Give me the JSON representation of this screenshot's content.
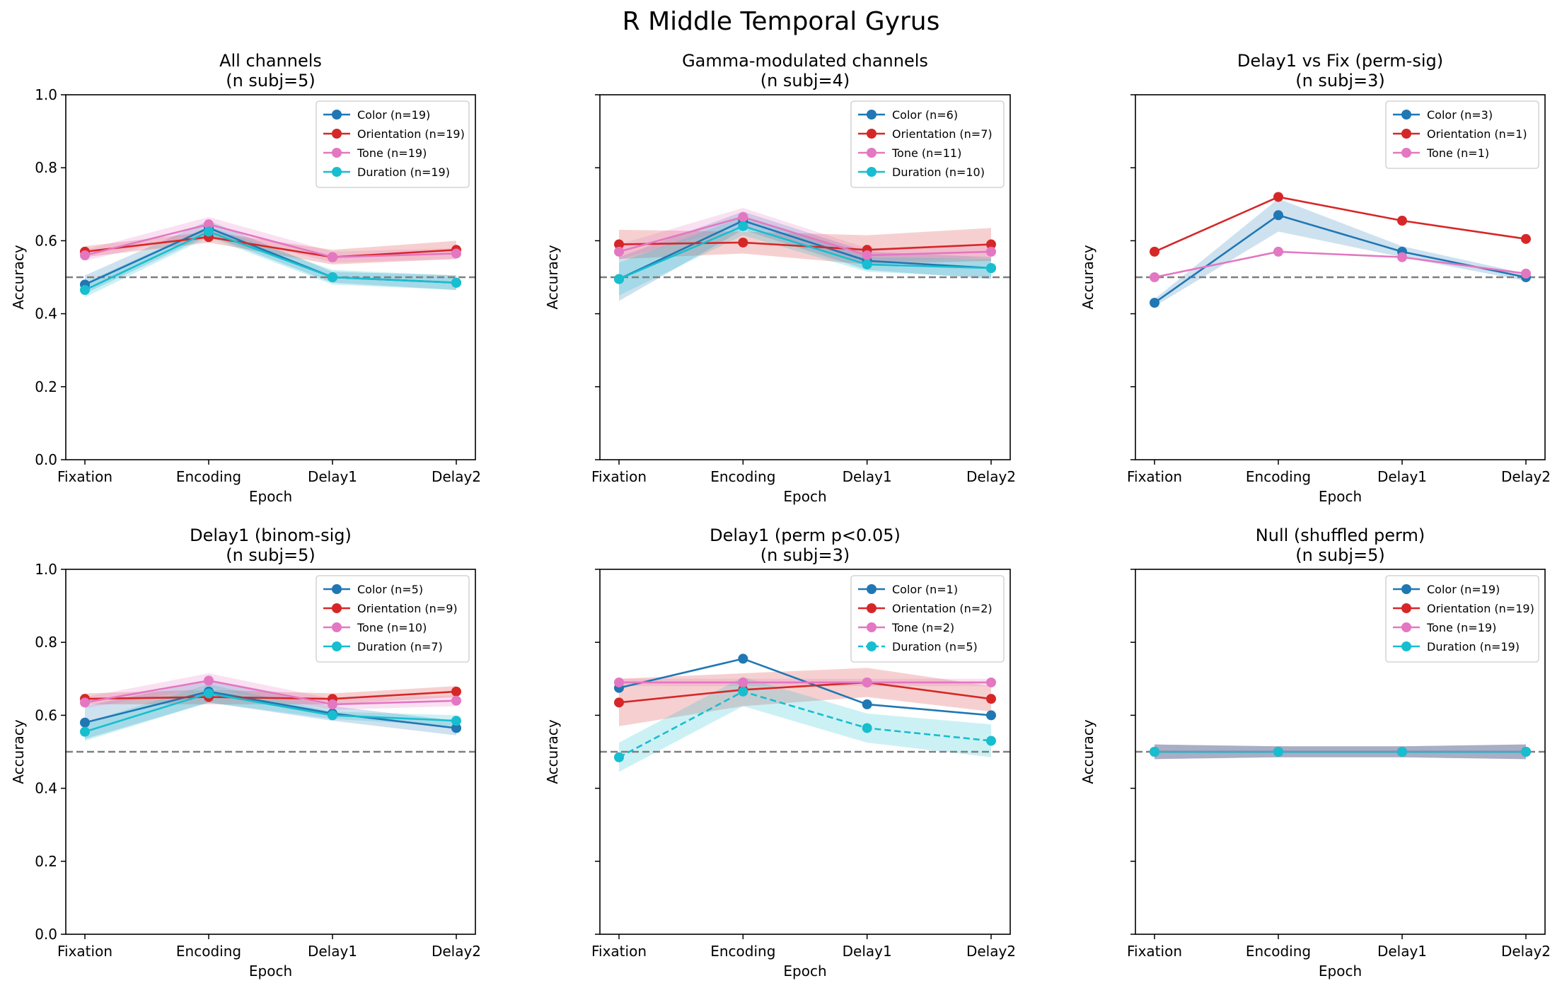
{
  "figure": {
    "title": "R Middle Temporal Gyrus"
  },
  "colors": {
    "Color": "#1f77b4",
    "Orientation": "#d62728",
    "Tone": "#e377c2",
    "Duration": "#17becf",
    "chance": "#7f7f7f"
  },
  "chart_data": [
    {
      "type": "line",
      "title": "All channels",
      "subtitle": "(n subj=5)",
      "xlabel": "Epoch",
      "ylabel": "Accuracy",
      "categories": [
        "Fixation",
        "Encoding",
        "Delay1",
        "Delay2"
      ],
      "ylim": [
        0,
        1
      ],
      "yticks": [
        "0.0",
        "0.2",
        "0.4",
        "0.6",
        "0.8",
        "1.0"
      ],
      "chance": 0.5,
      "legend_position": "upper right",
      "show_yticklabels": true,
      "series": [
        {
          "name": "Color (n=19)",
          "key": "Color",
          "values": [
            0.48,
            0.635,
            0.5,
            0.485
          ],
          "band": [
            0.025,
            0.02,
            0.015,
            0.02
          ]
        },
        {
          "name": "Orientation (n=19)",
          "key": "Orientation",
          "values": [
            0.57,
            0.61,
            0.555,
            0.575
          ],
          "band": [
            0.015,
            0.015,
            0.02,
            0.025
          ]
        },
        {
          "name": "Tone (n=19)",
          "key": "Tone",
          "values": [
            0.56,
            0.645,
            0.555,
            0.565
          ],
          "band": [
            0.015,
            0.02,
            0.015,
            0.015
          ]
        },
        {
          "name": "Duration (n=19)",
          "key": "Duration",
          "values": [
            0.465,
            0.625,
            0.5,
            0.485
          ],
          "band": [
            0.02,
            0.015,
            0.02,
            0.02
          ]
        }
      ]
    },
    {
      "type": "line",
      "title": "Gamma-modulated channels",
      "subtitle": "(n subj=4)",
      "xlabel": "Epoch",
      "ylabel": "Accuracy",
      "categories": [
        "Fixation",
        "Encoding",
        "Delay1",
        "Delay2"
      ],
      "ylim": [
        0,
        1
      ],
      "yticks": [
        "0.0",
        "0.2",
        "0.4",
        "0.6",
        "0.8",
        "1.0"
      ],
      "chance": 0.5,
      "legend_position": "upper right",
      "show_yticklabels": false,
      "series": [
        {
          "name": "Color (n=6)",
          "key": "Color",
          "values": [
            0.495,
            0.655,
            0.545,
            0.525
          ],
          "band": [
            0.06,
            0.025,
            0.025,
            0.03
          ]
        },
        {
          "name": "Orientation (n=7)",
          "key": "Orientation",
          "values": [
            0.59,
            0.595,
            0.575,
            0.59
          ],
          "band": [
            0.04,
            0.03,
            0.04,
            0.045
          ]
        },
        {
          "name": "Tone (n=11)",
          "key": "Tone",
          "values": [
            0.57,
            0.665,
            0.56,
            0.57
          ],
          "band": [
            0.02,
            0.025,
            0.02,
            0.015
          ]
        },
        {
          "name": "Duration (n=10)",
          "key": "Duration",
          "values": [
            0.495,
            0.64,
            0.535,
            0.525
          ],
          "band": [
            0.045,
            0.025,
            0.02,
            0.025
          ]
        }
      ]
    },
    {
      "type": "line",
      "title": "Delay1 vs Fix (perm-sig)",
      "subtitle": "(n subj=3)",
      "xlabel": "Epoch",
      "ylabel": "Accuracy",
      "categories": [
        "Fixation",
        "Encoding",
        "Delay1",
        "Delay2"
      ],
      "ylim": [
        0,
        1
      ],
      "yticks": [
        "0.0",
        "0.2",
        "0.4",
        "0.6",
        "0.8",
        "1.0"
      ],
      "chance": 0.5,
      "legend_position": "upper right",
      "show_yticklabels": false,
      "series": [
        {
          "name": "Color (n=3)",
          "key": "Color",
          "values": [
            0.43,
            0.67,
            0.57,
            0.5
          ],
          "band": [
            0.01,
            0.045,
            0.015,
            0.01
          ]
        },
        {
          "name": "Orientation (n=1)",
          "key": "Orientation",
          "values": [
            0.57,
            0.72,
            0.655,
            0.605
          ],
          "band": [
            0,
            0,
            0,
            0
          ]
        },
        {
          "name": "Tone (n=1)",
          "key": "Tone",
          "values": [
            0.5,
            0.57,
            0.555,
            0.51
          ],
          "band": [
            0,
            0,
            0,
            0
          ]
        }
      ]
    },
    {
      "type": "line",
      "title": "Delay1 (binom-sig)",
      "subtitle": "(n subj=5)",
      "xlabel": "Epoch",
      "ylabel": "Accuracy",
      "categories": [
        "Fixation",
        "Encoding",
        "Delay1",
        "Delay2"
      ],
      "ylim": [
        0,
        1
      ],
      "yticks": [
        "0.0",
        "0.2",
        "0.4",
        "0.6",
        "0.8",
        "1.0"
      ],
      "chance": 0.5,
      "legend_position": "upper right",
      "show_yticklabels": true,
      "series": [
        {
          "name": "Color (n=5)",
          "key": "Color",
          "values": [
            0.58,
            0.665,
            0.605,
            0.565
          ],
          "band": [
            0.045,
            0.03,
            0.02,
            0.02
          ]
        },
        {
          "name": "Orientation (n=9)",
          "key": "Orientation",
          "values": [
            0.645,
            0.65,
            0.645,
            0.665
          ],
          "band": [
            0.015,
            0.02,
            0.015,
            0.015
          ]
        },
        {
          "name": "Tone (n=10)",
          "key": "Tone",
          "values": [
            0.635,
            0.695,
            0.63,
            0.64
          ],
          "band": [
            0.015,
            0.02,
            0.015,
            0.015
          ]
        },
        {
          "name": "Duration (n=7)",
          "key": "Duration",
          "values": [
            0.555,
            0.66,
            0.6,
            0.585
          ],
          "band": [
            0.025,
            0.025,
            0.01,
            0.015
          ]
        }
      ]
    },
    {
      "type": "line",
      "title": "Delay1 (perm p<0.05)",
      "subtitle": "(n subj=3)",
      "xlabel": "Epoch",
      "ylabel": "Accuracy",
      "categories": [
        "Fixation",
        "Encoding",
        "Delay1",
        "Delay2"
      ],
      "ylim": [
        0,
        1
      ],
      "yticks": [
        "0.0",
        "0.2",
        "0.4",
        "0.6",
        "0.8",
        "1.0"
      ],
      "chance": 0.5,
      "legend_position": "upper right",
      "show_yticklabels": false,
      "series": [
        {
          "name": "Color (n=1)",
          "key": "Color",
          "values": [
            0.675,
            0.755,
            0.63,
            0.6
          ],
          "band": [
            0,
            0,
            0,
            0
          ]
        },
        {
          "name": "Orientation (n=2)",
          "key": "Orientation",
          "values": [
            0.635,
            0.67,
            0.69,
            0.645
          ],
          "band": [
            0.065,
            0.045,
            0.04,
            0.035
          ]
        },
        {
          "name": "Tone (n=2)",
          "key": "Tone",
          "values": [
            0.69,
            0.69,
            0.69,
            0.69
          ],
          "band": [
            0.01,
            0.01,
            0.01,
            0.01
          ]
        },
        {
          "name": "Duration (n=5)",
          "key": "Duration",
          "values": [
            0.485,
            0.665,
            0.565,
            0.53
          ],
          "band": [
            0.04,
            0.04,
            0.04,
            0.045
          ],
          "dashed": true
        }
      ]
    },
    {
      "type": "line",
      "title": "Null (shuffled perm)",
      "subtitle": "(n subj=5)",
      "xlabel": "Epoch",
      "ylabel": "Accuracy",
      "categories": [
        "Fixation",
        "Encoding",
        "Delay1",
        "Delay2"
      ],
      "ylim": [
        0,
        1
      ],
      "yticks": [
        "0.0",
        "0.2",
        "0.4",
        "0.6",
        "0.8",
        "1.0"
      ],
      "chance": 0.5,
      "legend_position": "upper right",
      "show_yticklabels": false,
      "series": [
        {
          "name": "Color (n=19)",
          "key": "Color",
          "values": [
            0.5,
            0.5,
            0.5,
            0.5
          ],
          "band": [
            0.02,
            0.015,
            0.015,
            0.02
          ]
        },
        {
          "name": "Orientation (n=19)",
          "key": "Orientation",
          "values": [
            0.5,
            0.5,
            0.5,
            0.5
          ],
          "band": [
            0.02,
            0.015,
            0.015,
            0.02
          ]
        },
        {
          "name": "Tone (n=19)",
          "key": "Tone",
          "values": [
            0.5,
            0.5,
            0.5,
            0.5
          ],
          "band": [
            0.02,
            0.015,
            0.015,
            0.02
          ]
        },
        {
          "name": "Duration (n=19)",
          "key": "Duration",
          "values": [
            0.5,
            0.5,
            0.5,
            0.5
          ],
          "band": [
            0.02,
            0.015,
            0.015,
            0.02
          ]
        }
      ]
    }
  ]
}
